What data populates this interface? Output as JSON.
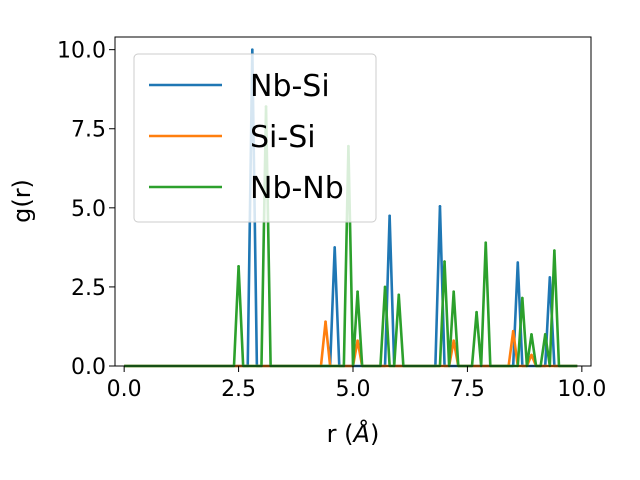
{
  "chart_data": {
    "type": "line",
    "title": "",
    "xlabel": "r (Å)",
    "ylabel": "g(r)",
    "xlim": [
      -0.2,
      10.2
    ],
    "ylim": [
      0,
      10.4
    ],
    "xticks": [
      "0.0",
      "2.5",
      "5.0",
      "7.5",
      "10.0"
    ],
    "yticks": [
      "0.0",
      "2.5",
      "5.0",
      "7.5",
      "10.0"
    ],
    "grid": false,
    "legend_position": "upper-left",
    "baseline_x_range": [
      0.0,
      9.9
    ],
    "series": [
      {
        "name": "Nb-Si",
        "color": "#1f77b4",
        "peaks": [
          [
            2.8,
            10.0
          ],
          [
            4.6,
            3.75
          ],
          [
            5.8,
            4.75
          ],
          [
            6.9,
            5.05
          ],
          [
            8.6,
            3.27
          ],
          [
            9.3,
            2.8
          ]
        ]
      },
      {
        "name": "Si-Si",
        "color": "#ff7f0e",
        "peaks": [
          [
            4.4,
            1.4
          ],
          [
            5.1,
            0.8
          ],
          [
            7.2,
            0.8
          ],
          [
            8.5,
            1.1
          ],
          [
            8.9,
            0.35
          ]
        ]
      },
      {
        "name": "Nb-Nb",
        "color": "#2ca02c",
        "peaks": [
          [
            2.5,
            3.15
          ],
          [
            3.1,
            8.2
          ],
          [
            4.9,
            6.95
          ],
          [
            5.1,
            2.35
          ],
          [
            5.7,
            2.5
          ],
          [
            6.0,
            2.25
          ],
          [
            7.0,
            3.3
          ],
          [
            7.2,
            2.35
          ],
          [
            7.7,
            1.7
          ],
          [
            7.9,
            3.9
          ],
          [
            8.7,
            2.15
          ],
          [
            8.9,
            1.0
          ],
          [
            9.2,
            1.0
          ],
          [
            9.4,
            3.65
          ]
        ]
      }
    ]
  }
}
